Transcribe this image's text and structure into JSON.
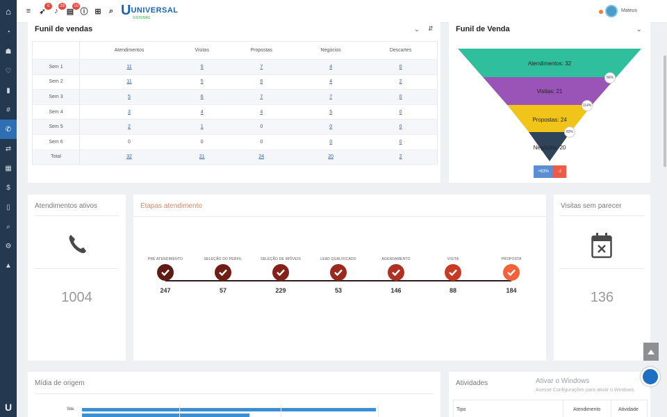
{
  "sidebar": {
    "items": [
      "home-icon",
      "dashboard-icon",
      "users-icon",
      "heart-icon",
      "building-icon",
      "hash-icon",
      "phone-icon",
      "exchange-icon",
      "calendar-icon",
      "dollar-icon",
      "file-icon",
      "search-icon",
      "gears-icon",
      "graduation-icon"
    ],
    "active": "phone-icon"
  },
  "topbar": {
    "badges": [
      "0",
      "29",
      "10"
    ],
    "brand": "UNIVERSAL",
    "brand_sub": "SISTEMAS",
    "user_name": "Mateus"
  },
  "funil_vendas": {
    "title": "Funil de vendas",
    "columns": [
      "",
      "Atendimentos",
      "Visitas",
      "Propostas",
      "Negócios",
      "Descartes"
    ],
    "rows": [
      {
        "label": "Sem 1",
        "cells": [
          "11",
          "5",
          "7",
          "4",
          "0"
        ]
      },
      {
        "label": "Sem 2",
        "cells": [
          "11",
          "5",
          "6",
          "4",
          "2"
        ]
      },
      {
        "label": "Sem 3",
        "cells": [
          "5",
          "6",
          "7",
          "7",
          "0"
        ]
      },
      {
        "label": "Sem 4",
        "cells": [
          "3",
          "4",
          "4",
          "5",
          "0"
        ]
      },
      {
        "label": "Sem 5",
        "cells": [
          "2",
          "1",
          "0",
          "0",
          "0"
        ]
      },
      {
        "label": "Sem 6",
        "cells": [
          "0",
          "0",
          "0",
          "0",
          "0"
        ]
      },
      {
        "label": "Total",
        "cells": [
          "32",
          "21",
          "24",
          "20",
          "2"
        ]
      }
    ]
  },
  "funil_venda_chart": {
    "title": "Funil de Venda",
    "stages": [
      {
        "label": "Atendimentos: 32",
        "color": "#2fbf9d"
      },
      {
        "label": "Visitas: 21",
        "color": "#9a54b8"
      },
      {
        "label": "Propostas: 24",
        "color": "#f0c419"
      },
      {
        "label": "Negócios: 20",
        "color": "#2f4359"
      }
    ],
    "pct_labels": [
      "66%",
      "114%",
      "83%"
    ],
    "legend": [
      {
        "label": "+63%",
        "color": "#5b8fd4"
      },
      {
        "label": "-2",
        "color": "#ec5b4a"
      }
    ]
  },
  "atendimentos_ativos": {
    "title": "Atendimentos ativos",
    "value": "1004"
  },
  "etapas": {
    "title": "Etapas atendimento",
    "stages": [
      {
        "name": "PRÉ ATENDIMENTO",
        "count": "247",
        "color": "#5e1b14"
      },
      {
        "name": "SELEÇÃO DO PERFIL",
        "count": "57",
        "color": "#6f1e15"
      },
      {
        "name": "SELEÇÃO DE IMÓVEIS",
        "count": "229",
        "color": "#84221a"
      },
      {
        "name": "LEAD QUALIFICADO",
        "count": "53",
        "color": "#9a2a1e"
      },
      {
        "name": "AGENDAMENTO",
        "count": "146",
        "color": "#ad3222"
      },
      {
        "name": "VISITA",
        "count": "88",
        "color": "#c73b25"
      },
      {
        "name": "PROPOSTA",
        "count": "184",
        "color": "#f2613a"
      }
    ]
  },
  "visitas_sem_parecer": {
    "title": "Visitas sem parecer",
    "value": "136"
  },
  "midia": {
    "title": "Mídia de origem",
    "bars": [
      {
        "label": "Site",
        "value": 1.0
      },
      {
        "label": "",
        "value": 0.57
      }
    ]
  },
  "atividades": {
    "title": "Atividades",
    "columns": [
      "Tipo",
      "Atendimento",
      "Atividade"
    ]
  },
  "watermark": {
    "line1": "Ativar o Windows",
    "line2": "Acesse Configurações para ativar o Windows."
  }
}
